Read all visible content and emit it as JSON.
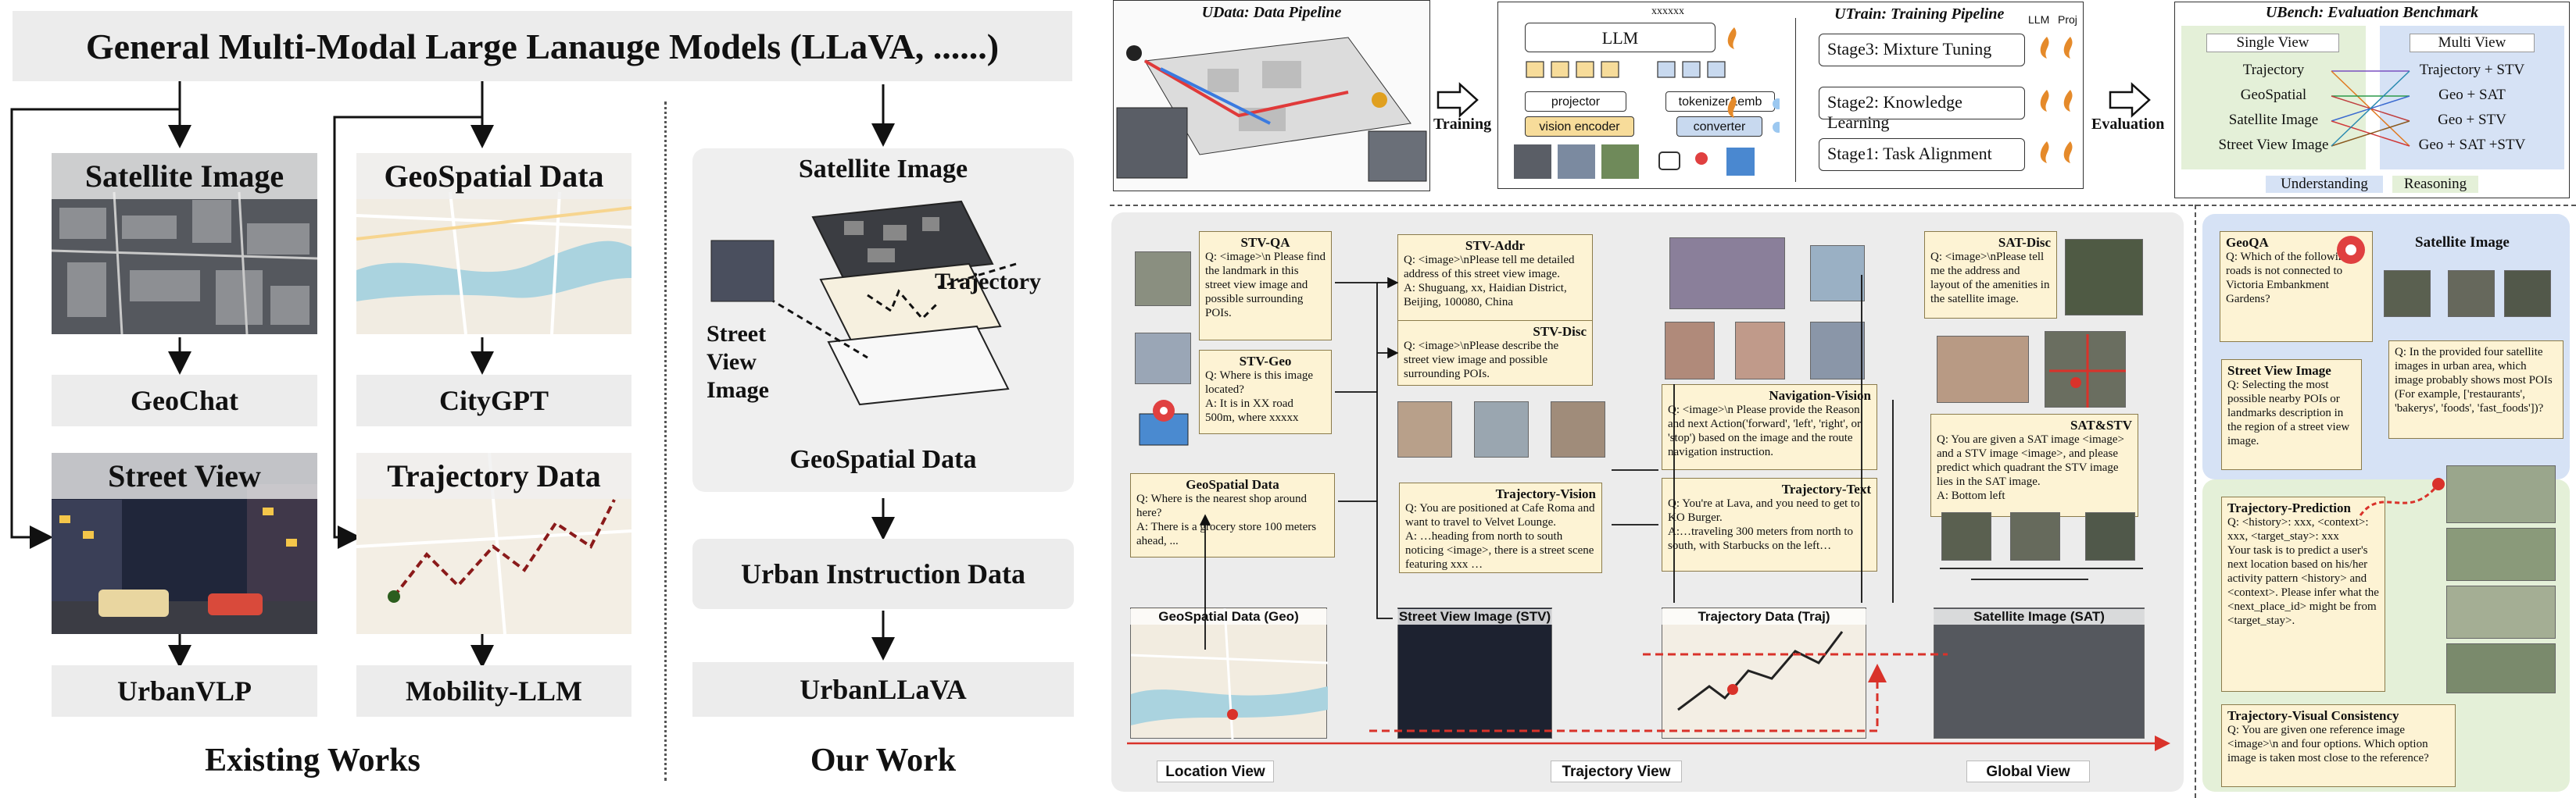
{
  "existing": {
    "header": "General Multi-Modal  Large Lanauge Models (LLaVA, ......)",
    "sat_label": "Satellite Image",
    "geo_label": "GeoSpatial Data",
    "geochat": "GeoChat",
    "citygpt": "CityGPT",
    "stv_label": "Street View",
    "traj_label": "Trajectory Data",
    "urbanvlp": "UrbanVLP",
    "mobility": "Mobility-LLM",
    "caption": "Existing Works"
  },
  "ours": {
    "sat": "Satellite Image",
    "traj": "Trajectory",
    "stv": "Street View Image",
    "geo": "GeoSpatial Data",
    "instr": "Urban Instruction Data",
    "model": "UrbanLLaVA",
    "caption": "Our Work"
  },
  "pipeline": {
    "udata_title": "UData: Data Pipeline",
    "training": "Training",
    "utrain_title": "UTrain: Training Pipeline",
    "llm": "LLM",
    "llm_col": "LLM",
    "proj_col": "Proj",
    "xxxxxx": "xxxxxx",
    "projector": "projector",
    "vision_encoder": "vision encoder",
    "tokenizer": "tokenizer&emb",
    "converter": "converter",
    "stage3": "Stage3: Mixture Tuning",
    "stage2": "Stage2: Knowledge Learning",
    "stage1": "Stage1: Task Alignment",
    "evaluation": "Evaluation",
    "ubench_title": "UBench: Evaluation Benchmark",
    "single_view": "Single View",
    "multi_view": "Multi View",
    "single_items": [
      "Trajectory",
      "GeoSpatial",
      "Satellite Image",
      "Street View Image"
    ],
    "multi_items": [
      "Trajectory + STV",
      "Geo + SAT",
      "Geo + STV",
      "Geo + SAT +STV"
    ],
    "understanding": "Understanding",
    "reasoning": "Reasoning"
  },
  "data_panel": {
    "stvqa": {
      "title": "STV-QA",
      "text": "Q: <image>\\n Please find the landmark in this street view image and possible surrounding POIs."
    },
    "stvgeo": {
      "title": "STV-Geo",
      "text": "Q: Where is this image located?\nA:  It is in XX road 500m, where xxxxx"
    },
    "stvaddr": {
      "title": "STV-Addr",
      "text": "Q: <image>\\nPlease tell me detailed address of this street view image.\nA: Shuguang, xx,  Haidian District, Beijing, 100080, China"
    },
    "stvdisc": {
      "title": "STV-Disc",
      "text": "Q: <image>\\nPlease describe the street view image and possible surrounding POIs."
    },
    "geodata": {
      "title": "GeoSpatial Data",
      "text": "Q: Where is the nearest shop around here?\nA:  There is a grocery store 100 meters ahead, ..."
    },
    "navvision": {
      "title": "Navigation-Vision",
      "text": "Q: <image>\\n Please provide the Reason and next Action('forward', 'left', 'right', or 'stop') based on the image and the route navigation instruction."
    },
    "trajvision": {
      "title": "Trajectory-Vision",
      "text": "Q: You are positioned at Cafe Roma and want to travel to Velvet Lounge.\nA: …heading from north to south noticing <image>, there is a street scene featuring xxx …"
    },
    "trajtext": {
      "title": "Trajectory-Text",
      "text": "Q: You're at Lava, and you need to get to KO Burger.\nA:…traveling 300 meters from north to south, with Starbucks on the left…"
    },
    "satdisc": {
      "title": "SAT-Disc",
      "text": "Q: <image>\\nPlease tell me the address and layout of the amenities in the satellite image."
    },
    "satstv": {
      "title": "SAT&STV",
      "text": "Q: You are given a SAT image <image> and a STV image <image>, and please predict which quadrant the STV image lies in the SAT image.\nA: Bottom left"
    },
    "geo_label": "GeoSpatial Data (Geo)",
    "stv_label": "Street View Image (STV)",
    "traj_label": "Trajectory Data (Traj)",
    "sat_label": "Satellite Image (SAT)",
    "location_view": "Location View",
    "trajectory_view": "Trajectory View",
    "global_view": "Global View"
  },
  "bench_panel": {
    "geoqa": {
      "title": "GeoQA",
      "text": "Q: Which of the following roads is not connected to Victoria Embankment Gardens?"
    },
    "satimg": {
      "title": "Satellite Image",
      "text": "Q: In the provided four satellite images in urban area, which image probably shows most POIs (For example, ['restaurants', 'bakerys', 'foods', 'fast_foods'])?"
    },
    "stvimg": {
      "title": "Street View Image",
      "text": "Q: Selecting the most possible nearby POIs or landmarks description in the region of a street view image."
    },
    "trajpred": {
      "title": "Trajectory-Prediction",
      "text": "Q: <history>: xxx, <context>: xxx, <target_stay>: xxx\nYour task is to predict a user's next location based on his/her activity pattern <history> and <context>. Please infer what the <next_place_id> might be from <target_stay>."
    },
    "trajvis": {
      "title": "Trajectory-Visual Consistency",
      "text": "Q: You are given one reference image <image>\\n and four options. Which option image is taken most close to the reference?"
    }
  },
  "colors": {
    "gray": "#ececec",
    "note": "#fdf3d4",
    "blue_panel": "#d6e2f5",
    "green_panel": "#e4f0d8",
    "red": "#d9322a",
    "bench_outline": "#2b6cb0"
  }
}
